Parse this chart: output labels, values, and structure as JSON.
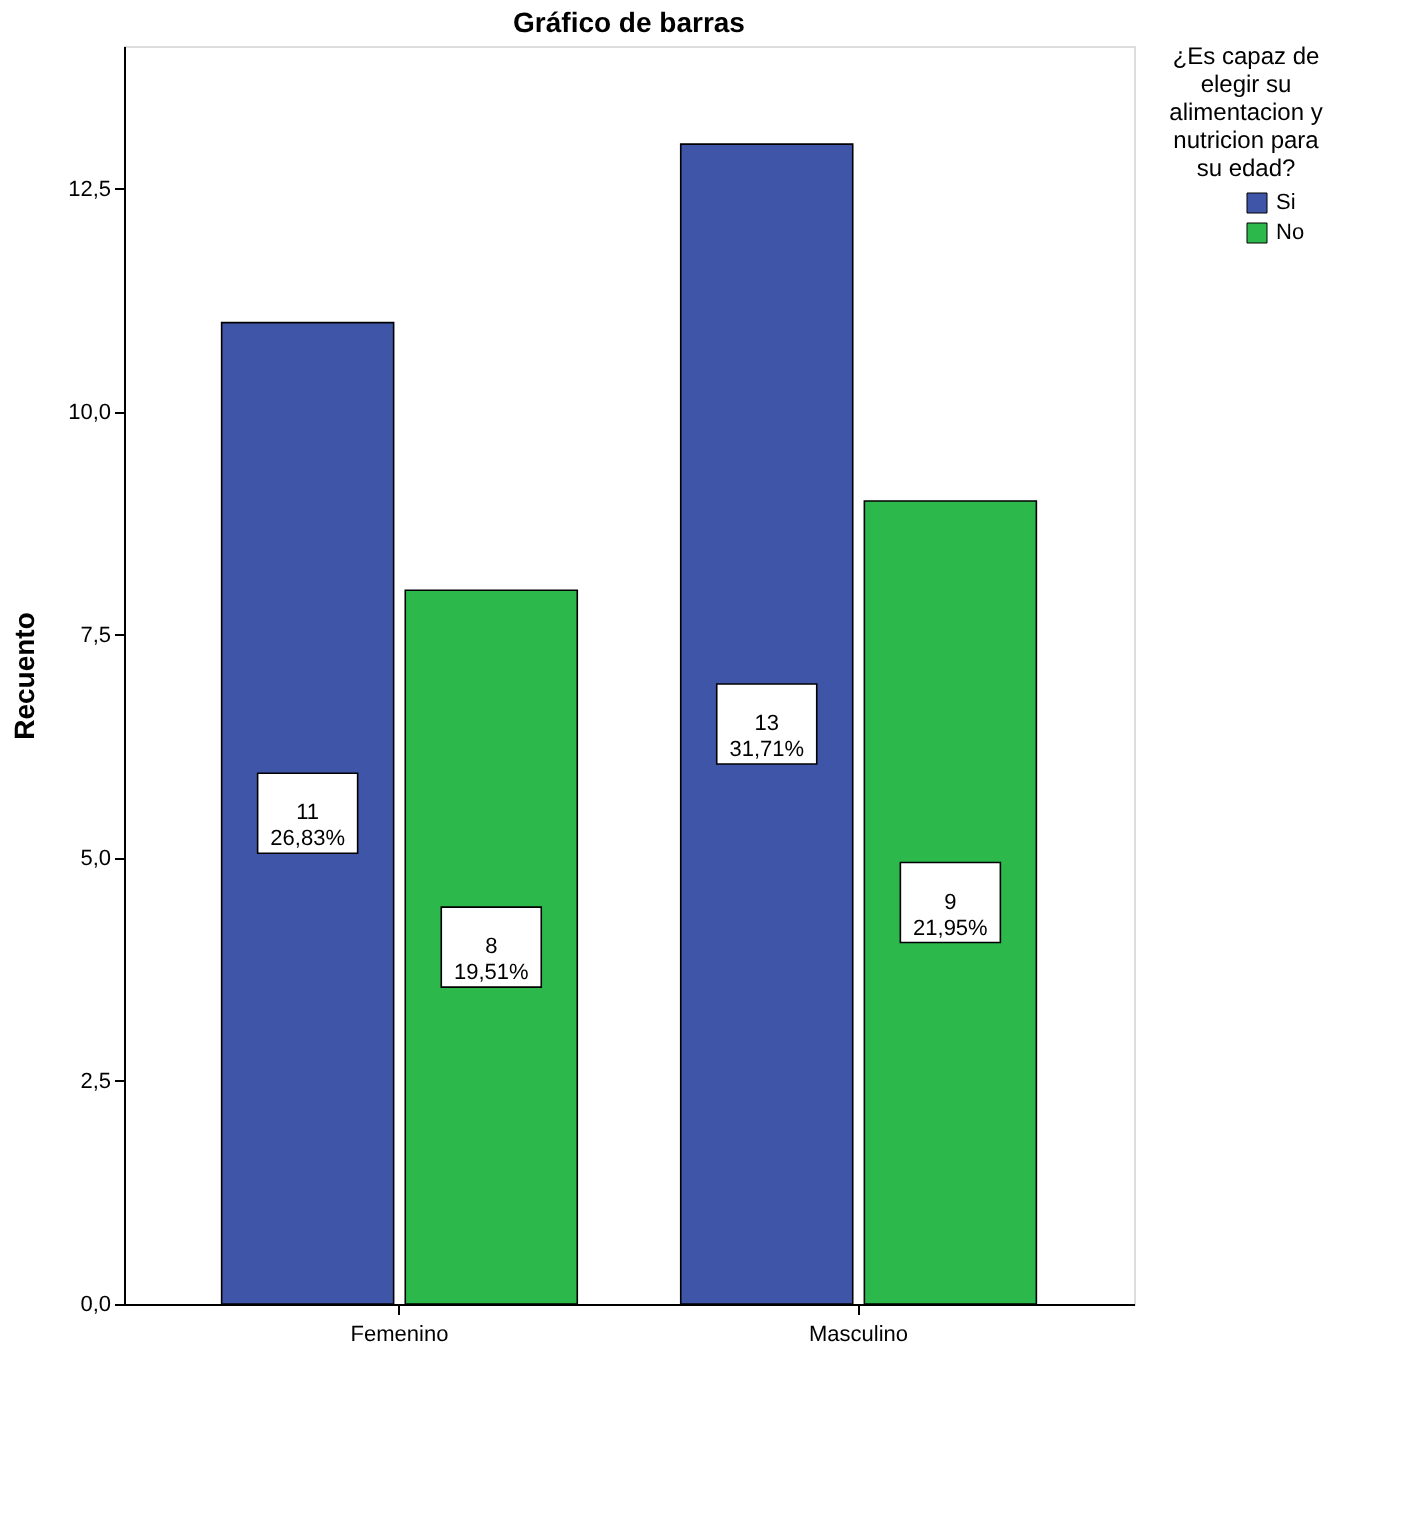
{
  "chart_data": {
    "type": "bar",
    "title": "Gráfico de barras",
    "ylabel": "Recuento",
    "legend_title": "¿Es capaz de elegir su alimentacion y nutricion para su edad?",
    "legend": "right",
    "grid": false,
    "categories": [
      "Femenino",
      "Masculino"
    ],
    "ylim": [
      0,
      14.1
    ],
    "yticks": [
      {
        "value": 0,
        "label": "0,0"
      },
      {
        "value": 2.5,
        "label": "2,5"
      },
      {
        "value": 5,
        "label": "5,0"
      },
      {
        "value": 7.5,
        "label": "7,5"
      },
      {
        "value": 10,
        "label": "10,0"
      },
      {
        "value": 12.5,
        "label": "12,5"
      }
    ],
    "series": [
      {
        "name": "Si",
        "color": "#3f55a8",
        "values": [
          11,
          13
        ],
        "value_labels": [
          "11\n26,83%",
          "13\n31,71%"
        ]
      },
      {
        "name": "No",
        "color": "#2db84b",
        "values": [
          8,
          9
        ],
        "value_labels": [
          "8\n19,51%",
          "9\n21,95%"
        ]
      }
    ]
  }
}
